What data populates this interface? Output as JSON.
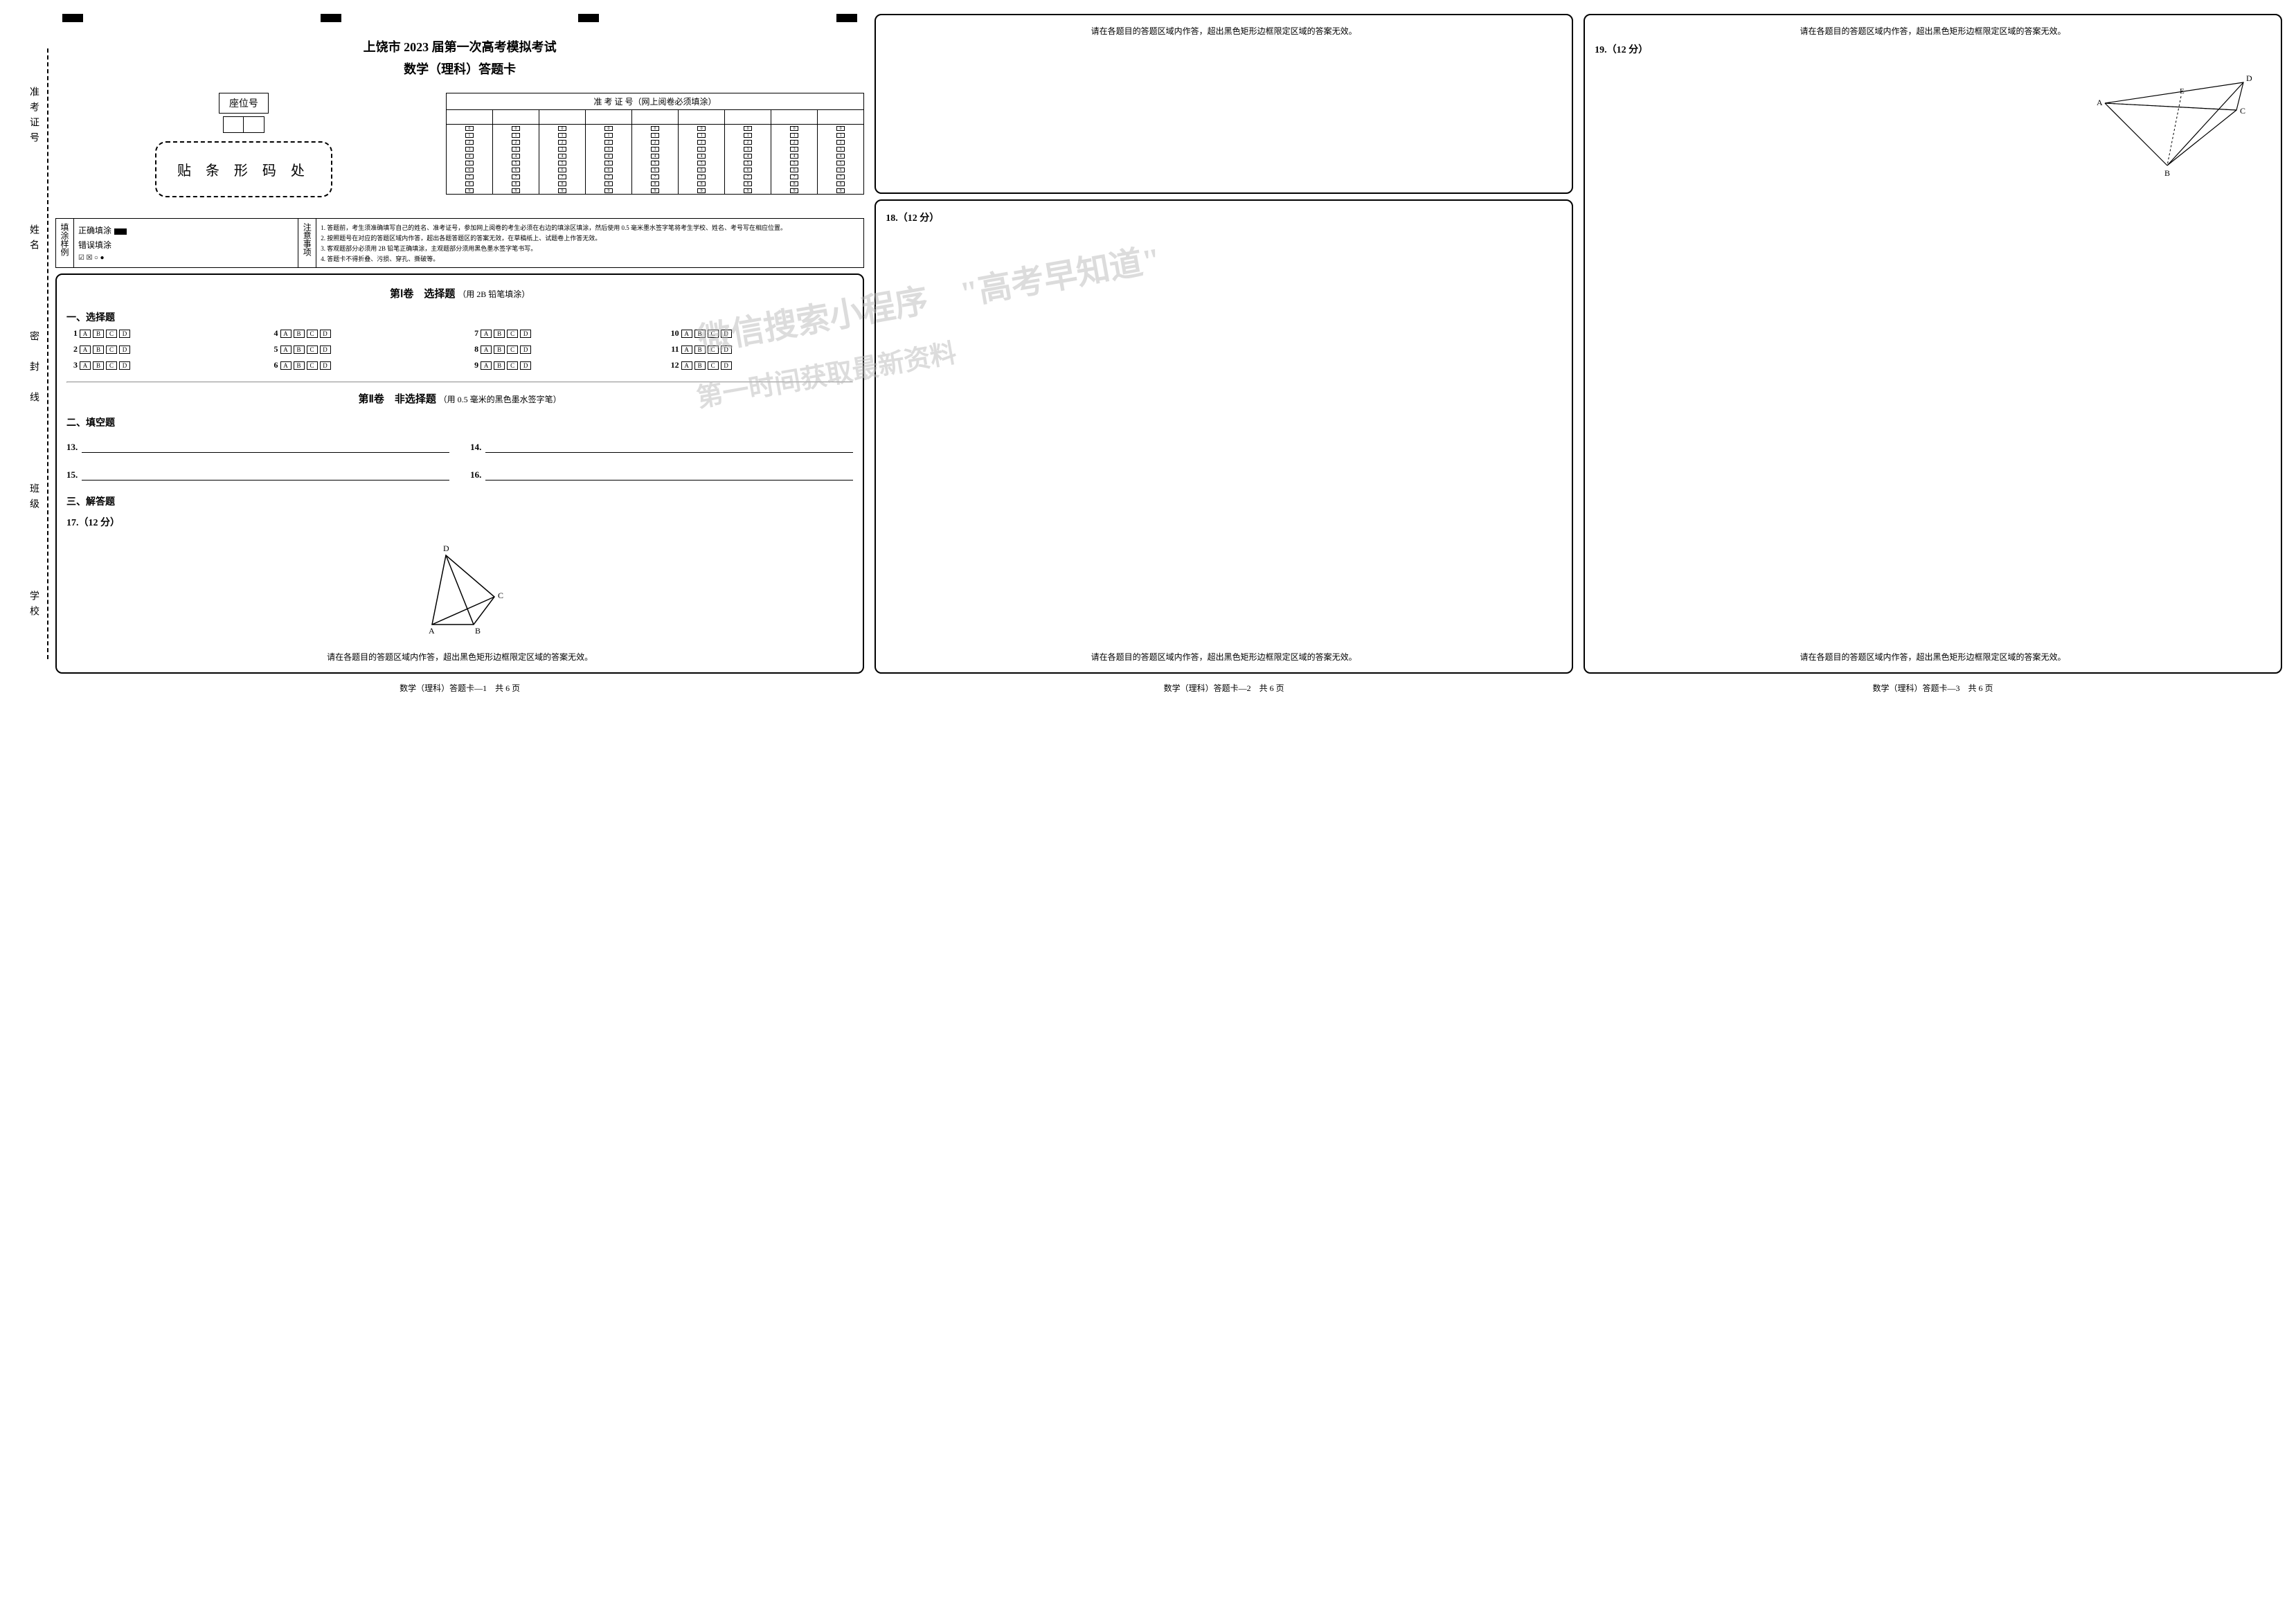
{
  "header": {
    "title_main": "上饶市 2023 届第一次高考模拟考试",
    "title_sub": "数学（理科）答题卡",
    "seat_label": "座位号",
    "barcode_area_label": "贴 条 形 码 处",
    "exam_id_label": "准 考 证 号（网上阅卷必须填涂）",
    "exam_id_columns": 9,
    "exam_id_digits": [
      0,
      1,
      2,
      3,
      4,
      5,
      6,
      7,
      8,
      9
    ]
  },
  "fill_examples": {
    "heading": "填涂样例",
    "correct_label": "正确填涂",
    "wrong_label": "错误填涂",
    "wrong_icons": "☑ ☒ ○ ●"
  },
  "notes": {
    "heading": "注意事项",
    "items": [
      "1. 答题前，考生须准确填写自己的姓名、准考证号，参加网上阅卷的考生必须在右边的填涂区填涂，然后使用 0.5 毫米墨水签字笔将考生学校、姓名、考号写在相应位置。",
      "2. 按照题号在对应的答题区域内作答，超出各题答题区的答案无效，在草稿纸上、试题卷上作答无效。",
      "3. 客观题部分必须用 2B 铅笔正确填涂，主观题部分须用黑色墨水签字笔书写。",
      "4. 答题卡不得折叠、污损、穿孔、撕破等。"
    ]
  },
  "section1": {
    "title": "第Ⅰ卷　选择题",
    "suffix": "（用 2B 铅笔填涂）",
    "heading": "一、选择题",
    "options": [
      "A",
      "B",
      "C",
      "D"
    ],
    "questions": [
      1,
      2,
      3,
      4,
      5,
      6,
      7,
      8,
      9,
      10,
      11,
      12
    ]
  },
  "section2": {
    "title": "第Ⅱ卷　非选择题",
    "suffix": "（用 0.5 毫米的黑色墨水签字笔）",
    "fill_heading": "二、填空题",
    "fill_blanks": [
      [
        "13.",
        "14."
      ],
      [
        "15.",
        "16."
      ]
    ],
    "free_heading": "三、解答题",
    "q17_label": "17.（12 分）"
  },
  "instruction_line": "请在各题目的答题区域内作答，超出黑色矩形边框限定区域的答案无效。",
  "q18_label": "18.（12 分）",
  "q19_label": "19.（12 分）",
  "footer": {
    "page1": "数学（理科）答题卡—1　共 6 页",
    "page2": "数学（理科）答题卡—2　共 6 页",
    "page3": "数学（理科）答题卡—3　共 6 页"
  },
  "vertical_labels": [
    "学校",
    "班级",
    "姓名",
    "准考证号"
  ],
  "seal_line_label": "密　封　线",
  "watermark_text1": "微信搜索小程序　\"高考早知道\"",
  "watermark_text2": "第一时间获取最新资料",
  "diagram17": {
    "points": {
      "A": "A",
      "B": "B",
      "C": "C",
      "D": "D"
    }
  },
  "diagram19": {
    "points": {
      "A": "A",
      "B": "B",
      "C": "C",
      "D": "D",
      "E": "E"
    }
  },
  "colors": {
    "line": "#000000",
    "watermark": "#bbbbbb",
    "bg": "#ffffff"
  }
}
